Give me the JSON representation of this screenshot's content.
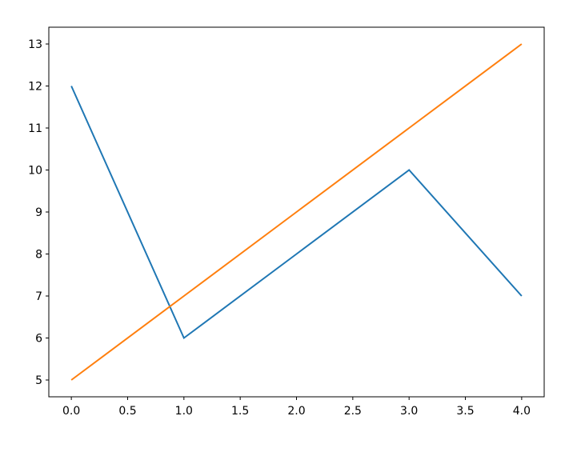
{
  "chart_data": {
    "type": "line",
    "title": "",
    "xlabel": "",
    "ylabel": "",
    "xlim": [
      -0.2,
      4.2
    ],
    "ylim": [
      4.6,
      13.4
    ],
    "x": [
      0,
      1,
      2,
      3,
      4
    ],
    "series": [
      {
        "values": [
          12,
          6,
          8,
          10,
          7
        ],
        "color": "#1f77b4"
      },
      {
        "values": [
          5,
          7,
          9,
          11,
          13
        ],
        "color": "#ff7f0e"
      }
    ],
    "xticks": [
      "0.0",
      "0.5",
      "1.0",
      "1.5",
      "2.0",
      "2.5",
      "3.0",
      "3.5",
      "4.0"
    ],
    "xtick_values": [
      0,
      0.5,
      1,
      1.5,
      2,
      2.5,
      3,
      3.5,
      4
    ],
    "yticks": [
      "5",
      "6",
      "7",
      "8",
      "9",
      "10",
      "11",
      "12",
      "13"
    ],
    "ytick_values": [
      5,
      6,
      7,
      8,
      9,
      10,
      11,
      12,
      13
    ],
    "grid": false,
    "legend": "none"
  }
}
